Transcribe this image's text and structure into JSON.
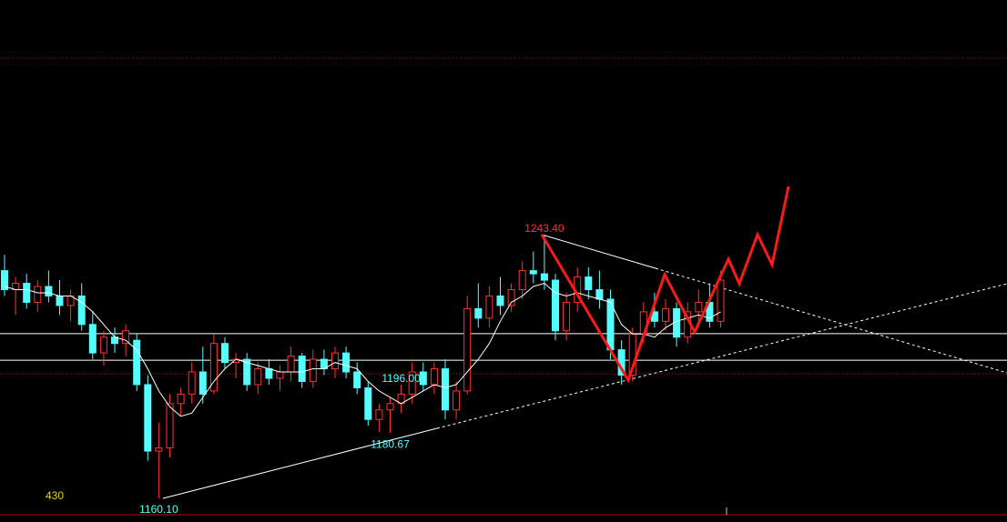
{
  "chart_data": {
    "type": "candlestick",
    "ylim": [
      1152.6,
      1317.5
    ],
    "up_color": "#ff3232",
    "down_color": "#54ffff",
    "ma_color": "#ffffff",
    "grid_lines": [
      1299.1,
      1199.4
    ],
    "grid_color": "#a01010",
    "levels": [
      1212.1,
      1203.7
    ],
    "level_color": "#ffffff",
    "open": [
      1232,
      1226,
      1228,
      1222,
      1227,
      1224,
      1221,
      1224,
      1215,
      1206,
      1211,
      1209,
      1210,
      1196,
      1175,
      1176,
      1190,
      1193,
      1200,
      1194,
      1209,
      1203,
      1204,
      1196,
      1201,
      1198,
      1200,
      1205,
      1197,
      1204,
      1201,
      1206,
      1200,
      1195,
      1185,
      1188,
      1190,
      1193,
      1200,
      1196,
      1201,
      1188,
      1194,
      1220,
      1217,
      1224,
      1221,
      1226,
      1232,
      1231,
      1229,
      1213,
      1222,
      1230,
      1226,
      1223,
      1207,
      1199,
      1212,
      1219,
      1216,
      1220,
      1211,
      1219,
      1222,
      1216
    ],
    "high": [
      1237,
      1230,
      1231,
      1229,
      1232,
      1229,
      1226,
      1228,
      1219,
      1213,
      1214,
      1215,
      1212,
      1199,
      1184,
      1193,
      1195,
      1203,
      1208,
      1212,
      1211,
      1206,
      1206,
      1203,
      1204,
      1202,
      1208,
      1206,
      1207,
      1207,
      1208,
      1208,
      1203,
      1197,
      1190,
      1192,
      1196,
      1203,
      1203,
      1203,
      1204,
      1197,
      1224,
      1228,
      1227,
      1230,
      1228,
      1235,
      1238,
      1243.4,
      1231,
      1225,
      1233,
      1233,
      1232,
      1226,
      1210,
      1214,
      1222,
      1225,
      1223,
      1222,
      1222,
      1226,
      1228,
      1232
    ],
    "low": [
      1224,
      1218,
      1220,
      1219,
      1222,
      1218,
      1216,
      1213,
      1204,
      1202,
      1206,
      1205,
      1194,
      1172,
      1160.1,
      1173,
      1186,
      1190,
      1190,
      1193,
      1201,
      1198,
      1194,
      1193,
      1196,
      1194,
      1197,
      1195,
      1195,
      1199,
      1198,
      1198,
      1193,
      1183,
      1181,
      1180.67,
      1187,
      1190,
      1194,
      1193,
      1185,
      1185,
      1193,
      1214,
      1214,
      1218,
      1219,
      1223,
      1228,
      1226,
      1210,
      1210,
      1219,
      1223,
      1220,
      1204,
      1196,
      1197,
      1209,
      1214,
      1213,
      1208,
      1209,
      1214,
      1214,
      1214
    ],
    "close": [
      1226,
      1228,
      1222,
      1227,
      1224,
      1221,
      1224,
      1215,
      1206,
      1211,
      1209,
      1213,
      1196,
      1175,
      1176,
      1190,
      1193,
      1200,
      1193,
      1209,
      1203,
      1204,
      1196,
      1201,
      1198,
      1200,
      1205,
      1197,
      1204,
      1201,
      1206,
      1200,
      1195,
      1185,
      1188,
      1190,
      1193,
      1200,
      1196,
      1201,
      1188,
      1194,
      1220,
      1217,
      1224,
      1221,
      1226,
      1232,
      1231,
      1229,
      1213,
      1222,
      1230,
      1226,
      1223,
      1207,
      1199,
      1212,
      1219,
      1216,
      1220,
      1211,
      1219,
      1222,
      1216,
      1229
    ],
    "ma": [
      1227,
      1226,
      1226,
      1225,
      1225,
      1224,
      1224,
      1222,
      1219,
      1215,
      1211,
      1210,
      1207,
      1201,
      1194,
      1189,
      1186,
      1187,
      1192,
      1197,
      1201,
      1204,
      1203,
      1202,
      1201,
      1200,
      1200,
      1200,
      1201,
      1201,
      1203,
      1202,
      1201,
      1197,
      1194,
      1192,
      1190,
      1192,
      1194,
      1196,
      1195,
      1196,
      1200,
      1204,
      1209,
      1216,
      1222,
      1224,
      1227,
      1228,
      1225,
      1224,
      1225,
      1224,
      1223,
      1222,
      1215,
      1212,
      1212,
      1211,
      1214,
      1216,
      1217,
      1218,
      1217,
      1219
    ],
    "annotations": [
      {
        "value": 1243.4,
        "label": "1243.40",
        "color": "#ff3232"
      },
      {
        "value": 1196,
        "label": "1196.00",
        "color": "#54ffff"
      },
      {
        "value": 1180.67,
        "label": "1180.67",
        "color": "#54ffff"
      },
      {
        "value": 1160.1,
        "label": "1160.10",
        "color": "#54ffff"
      }
    ],
    "period_label": "430",
    "period_color": "#e8d000"
  }
}
